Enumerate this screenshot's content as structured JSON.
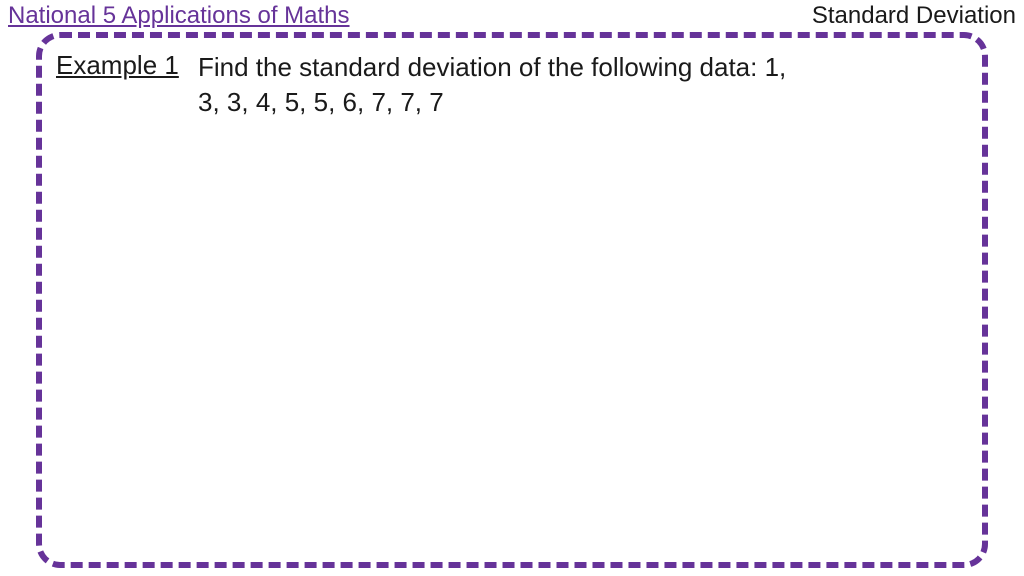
{
  "header": {
    "left_title": "National 5 Applications of Maths",
    "right_title": "Standard Deviation"
  },
  "content": {
    "example_label": "Example 1",
    "prompt_text": "Find the standard deviation of the following data: 1, 3, 3, 4, 5, 5, 6, 7, 7, 7"
  },
  "styling": {
    "header_left_color": "#663399",
    "header_right_color": "#1a1a1a",
    "border_color": "#663399",
    "border_width": 6,
    "border_radius": 24,
    "border_style": "dashed",
    "background_color": "#ffffff",
    "body_font": "Trebuchet MS",
    "header_fontsize": 24,
    "content_fontsize": 26,
    "text_color": "#1a1a1a"
  }
}
